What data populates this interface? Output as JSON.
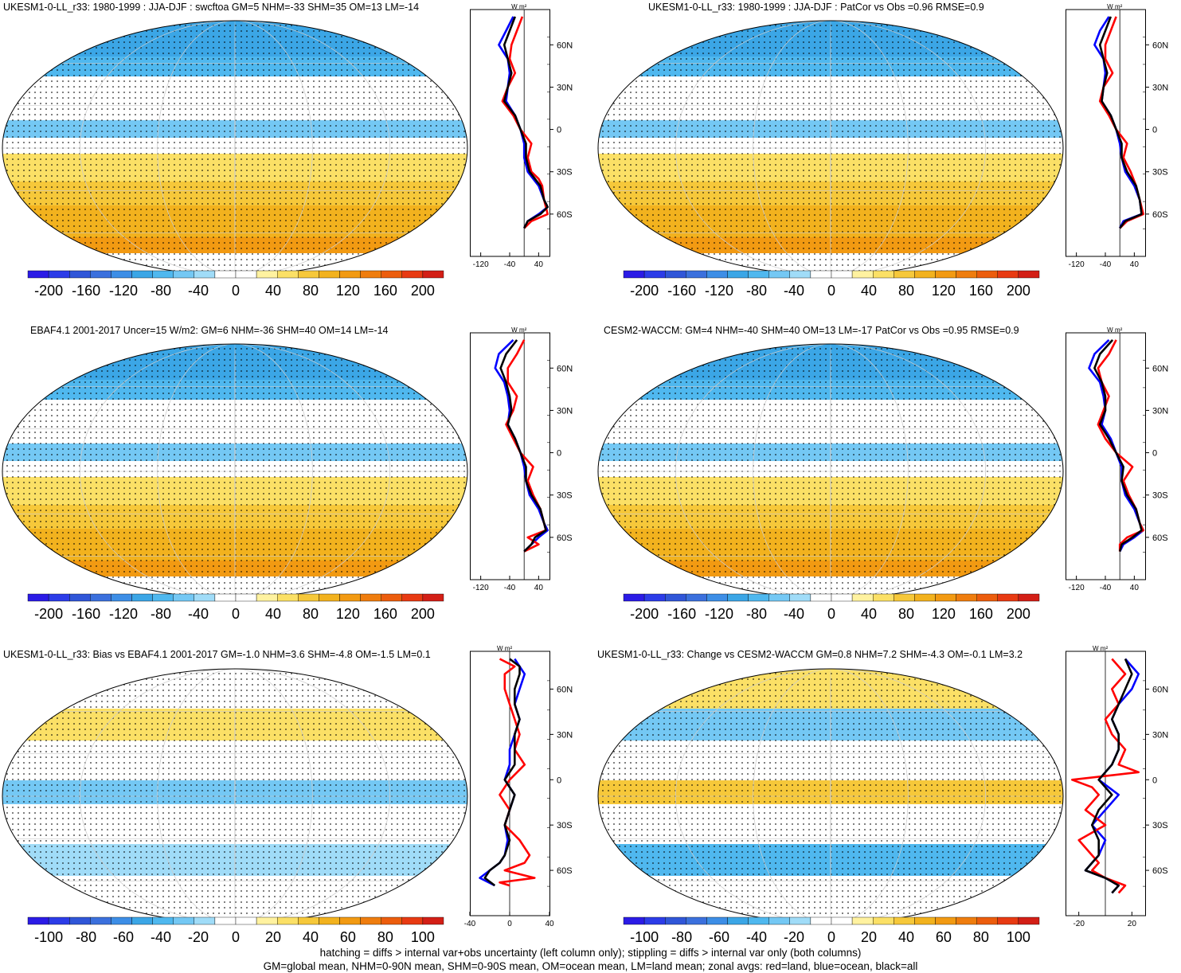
{
  "footer": {
    "line1": "hatching = diffs > internal var+obs uncertainty (left column only); stippling = diffs > internal var only (both columns)",
    "line2": "GM=global mean, NHM=0-90N mean, SHM=0-90S mean, OM=ocean mean, LM=land mean; zonal avgs: red=land, blue=ocean, black=all"
  },
  "unit_label": "W m²",
  "colors": {
    "land": "#ff0000",
    "ocean": "#0000ff",
    "all": "#000000",
    "colorbar": [
      "#2b1be6",
      "#2c3ce8",
      "#3056d8",
      "#3b70dd",
      "#3d8ee6",
      "#3ba6e6",
      "#4fb8ef",
      "#74c8f4",
      "#a0dcf8",
      "#ffffff",
      "#ffffff",
      "#fff2a0",
      "#fbe066",
      "#f6c83a",
      "#f2b21e",
      "#f29a12",
      "#ef7d0e",
      "#ec5d0d",
      "#e83a12",
      "#d31f16"
    ]
  },
  "chart_data": [
    {
      "id": "p1",
      "type": "heatmap",
      "title": "UKESM1-0-LL_r33: 1980-1999 : JJA-DJF : swcftoa GM=5 NHM=-33 SHM=35 OM=13 LM=-14",
      "colorbar_ticks": [
        "-200",
        "-160",
        "-120",
        "-80",
        "-40",
        "0",
        "40",
        "80",
        "120",
        "160",
        "200"
      ],
      "zonal": {
        "type": "line",
        "xlim": [
          -150,
          70
        ],
        "xticks": [
          "-120",
          "-40",
          "40"
        ],
        "yticks": [
          "60N",
          "30N",
          "0",
          "30S",
          "60S"
        ],
        "series": [
          {
            "name": "land",
            "lat": [
              80,
              70,
              60,
              50,
              40,
              30,
              20,
              10,
              0,
              -10,
              -20,
              -30,
              -35,
              -40,
              -50,
              -55,
              -60,
              -65,
              -70
            ],
            "values": [
              -5,
              -20,
              -35,
              -40,
              -25,
              -45,
              -60,
              -30,
              -10,
              20,
              10,
              20,
              40,
              50,
              55,
              60,
              65,
              20,
              0
            ]
          },
          {
            "name": "ocean",
            "lat": [
              80,
              70,
              60,
              50,
              40,
              30,
              20,
              10,
              0,
              -10,
              -20,
              -30,
              -40,
              -50,
              -55,
              -60,
              -65,
              -70
            ],
            "values": [
              -30,
              -50,
              -70,
              -45,
              -40,
              -45,
              -50,
              -25,
              -10,
              0,
              0,
              10,
              40,
              55,
              65,
              40,
              10,
              0
            ]
          },
          {
            "name": "all",
            "lat": [
              80,
              70,
              60,
              50,
              40,
              30,
              20,
              10,
              0,
              -10,
              -20,
              -30,
              -40,
              -50,
              -55,
              -60,
              -65,
              -70
            ],
            "values": [
              -25,
              -40,
              -55,
              -45,
              -35,
              -45,
              -55,
              -25,
              -10,
              5,
              5,
              15,
              45,
              55,
              65,
              45,
              10,
              0
            ]
          }
        ]
      }
    },
    {
      "id": "p2",
      "type": "heatmap",
      "title": "UKESM1-0-LL_r33: 1980-1999 : JJA-DJF : PatCor vs Obs =0.96 RMSE=0.9",
      "colorbar_ticks": [
        "-200",
        "-160",
        "-120",
        "-80",
        "-40",
        "0",
        "40",
        "80",
        "120",
        "160",
        "200"
      ],
      "zonal": {
        "type": "line",
        "xlim": [
          -150,
          70
        ],
        "xticks": [
          "-120",
          "-40",
          "40"
        ],
        "yticks": [
          "60N",
          "30N",
          "0",
          "30S",
          "60S"
        ],
        "series": [
          {
            "name": "land",
            "lat": [
              80,
              70,
              60,
              50,
              40,
              30,
              20,
              10,
              0,
              -10,
              -20,
              -30,
              -40,
              -50,
              -60,
              -65,
              -70
            ],
            "values": [
              -10,
              -25,
              -40,
              -40,
              -20,
              -45,
              -55,
              -30,
              -10,
              20,
              10,
              30,
              45,
              55,
              65,
              20,
              0
            ]
          },
          {
            "name": "ocean",
            "lat": [
              80,
              70,
              60,
              50,
              40,
              30,
              20,
              10,
              0,
              -10,
              -20,
              -30,
              -40,
              -50,
              -60,
              -65,
              -70
            ],
            "values": [
              -30,
              -55,
              -70,
              -45,
              -40,
              -45,
              -50,
              -25,
              -10,
              0,
              5,
              15,
              40,
              55,
              60,
              10,
              0
            ]
          },
          {
            "name": "all",
            "lat": [
              80,
              70,
              60,
              50,
              40,
              30,
              20,
              10,
              0,
              -10,
              -20,
              -30,
              -40,
              -50,
              -60,
              -65,
              -70
            ],
            "values": [
              -25,
              -40,
              -55,
              -45,
              -35,
              -45,
              -50,
              -25,
              -10,
              5,
              5,
              20,
              45,
              55,
              60,
              15,
              0
            ]
          }
        ]
      }
    },
    {
      "id": "p3",
      "type": "heatmap",
      "title": "EBAF4.1 2001-2017 Uncer=15 W/m2: GM=6 NHM=-36 SHM=40 OM=14 LM=-14",
      "colorbar_ticks": [
        "-200",
        "-160",
        "-120",
        "-80",
        "-40",
        "0",
        "40",
        "80",
        "120",
        "160",
        "200"
      ],
      "zonal": {
        "type": "line",
        "xlim": [
          -150,
          70
        ],
        "xticks": [
          "-120",
          "-40",
          "40"
        ],
        "yticks": [
          "60N",
          "30N",
          "0",
          "30S",
          "60S"
        ],
        "series": [
          {
            "name": "land",
            "lat": [
              80,
              70,
              60,
              50,
              40,
              30,
              20,
              10,
              0,
              -10,
              -20,
              -30,
              -40,
              -50,
              -55,
              -60,
              -65,
              -70
            ],
            "values": [
              0,
              -20,
              -45,
              -45,
              -20,
              -30,
              -50,
              -30,
              -10,
              25,
              10,
              25,
              45,
              55,
              60,
              10,
              40,
              0
            ]
          },
          {
            "name": "ocean",
            "lat": [
              80,
              70,
              60,
              50,
              40,
              30,
              20,
              10,
              0,
              -10,
              -20,
              -30,
              -40,
              -50,
              -55,
              -60,
              -65,
              -70
            ],
            "values": [
              -30,
              -70,
              -80,
              -55,
              -45,
              -40,
              -45,
              -25,
              -10,
              0,
              5,
              15,
              40,
              55,
              65,
              40,
              20,
              0
            ]
          },
          {
            "name": "all",
            "lat": [
              80,
              70,
              60,
              50,
              40,
              30,
              20,
              10,
              0,
              -10,
              -20,
              -30,
              -40,
              -50,
              -55,
              -60,
              -65,
              -70
            ],
            "values": [
              -20,
              -50,
              -65,
              -50,
              -40,
              -35,
              -45,
              -25,
              -10,
              5,
              5,
              20,
              45,
              55,
              60,
              30,
              20,
              0
            ]
          }
        ]
      }
    },
    {
      "id": "p4",
      "type": "heatmap",
      "title": "CESM2-WACCM: GM=4 NHM=-40 SHM=40 OM=13 LM=-17 PatCor vs Obs =0.95 RMSE=0.9",
      "colorbar_ticks": [
        "-200",
        "-160",
        "-120",
        "-80",
        "-40",
        "0",
        "40",
        "80",
        "120",
        "160",
        "200"
      ],
      "zonal": {
        "type": "line",
        "xlim": [
          -150,
          70
        ],
        "xticks": [
          "-120",
          "-40",
          "40"
        ],
        "yticks": [
          "60N",
          "30N",
          "0",
          "30S",
          "60S"
        ],
        "series": [
          {
            "name": "land",
            "lat": [
              80,
              70,
              60,
              50,
              40,
              30,
              20,
              10,
              0,
              -10,
              -20,
              -30,
              -40,
              -50,
              -55,
              -60,
              -65,
              -70
            ],
            "values": [
              -10,
              -30,
              -60,
              -50,
              -30,
              -45,
              -60,
              -40,
              -10,
              35,
              10,
              25,
              45,
              55,
              65,
              20,
              0,
              0
            ]
          },
          {
            "name": "ocean",
            "lat": [
              80,
              70,
              60,
              50,
              40,
              30,
              20,
              10,
              0,
              -10,
              -20,
              -30,
              -40,
              -50,
              -55,
              -60,
              -65,
              -70
            ],
            "values": [
              -30,
              -70,
              -85,
              -55,
              -45,
              -40,
              -50,
              -25,
              -10,
              5,
              5,
              15,
              40,
              55,
              65,
              40,
              10,
              0
            ]
          },
          {
            "name": "all",
            "lat": [
              80,
              70,
              60,
              50,
              40,
              30,
              20,
              10,
              0,
              -10,
              -20,
              -30,
              -40,
              -50,
              -55,
              -60,
              -65,
              -70
            ],
            "values": [
              -20,
              -55,
              -70,
              -50,
              -40,
              -40,
              -55,
              -30,
              -10,
              10,
              5,
              20,
              45,
              55,
              60,
              35,
              5,
              0
            ]
          }
        ]
      }
    },
    {
      "id": "p5",
      "type": "heatmap",
      "title": "UKESM1-0-LL_r33: Bias vs EBAF4.1 2001-2017 GM=-1.0 NHM=3.6 SHM=-4.8 OM=-1.5 LM=0.1",
      "colorbar_ticks": [
        "-100",
        "-80",
        "-60",
        "-40",
        "-20",
        "0",
        "20",
        "40",
        "60",
        "80",
        "100"
      ],
      "zonal": {
        "type": "line",
        "xlim": [
          -40,
          40
        ],
        "xticks": [
          "-40",
          "0",
          "40"
        ],
        "yticks": [
          "60N",
          "30N",
          "0",
          "30S",
          "60S"
        ],
        "series": [
          {
            "name": "land",
            "lat": [
              80,
              75,
              70,
              60,
              50,
              40,
              30,
              20,
              10,
              0,
              -10,
              -20,
              -30,
              -40,
              -50,
              -55,
              -60,
              -65,
              -68,
              -70
            ],
            "values": [
              -10,
              5,
              -5,
              -5,
              0,
              5,
              10,
              5,
              15,
              0,
              -10,
              0,
              -5,
              10,
              20,
              15,
              -5,
              25,
              -10,
              0
            ]
          },
          {
            "name": "ocean",
            "lat": [
              80,
              75,
              70,
              60,
              50,
              40,
              30,
              20,
              10,
              0,
              -10,
              -20,
              -30,
              -40,
              -50,
              -55,
              -60,
              -65,
              -70
            ],
            "values": [
              5,
              10,
              15,
              10,
              5,
              10,
              5,
              0,
              0,
              -5,
              5,
              0,
              -5,
              -2,
              -5,
              -10,
              -20,
              -30,
              -15
            ]
          },
          {
            "name": "all",
            "lat": [
              80,
              75,
              70,
              60,
              50,
              40,
              30,
              20,
              10,
              0,
              -10,
              -20,
              -30,
              -40,
              -50,
              -55,
              -60,
              -65,
              -70
            ],
            "values": [
              0,
              10,
              10,
              5,
              5,
              10,
              5,
              5,
              5,
              -5,
              5,
              0,
              -5,
              0,
              -5,
              -10,
              -20,
              -25,
              -15
            ]
          }
        ]
      }
    },
    {
      "id": "p6",
      "type": "heatmap",
      "title": "UKESM1-0-LL_r33: Change vs CESM2-WACCM GM=0.8 NHM=7.2 SHM=-4.3 OM=-0.1 LM=3.2",
      "colorbar_ticks": [
        "-100",
        "-80",
        "-60",
        "-40",
        "-20",
        "0",
        "20",
        "40",
        "60",
        "80",
        "100"
      ],
      "zonal": {
        "type": "line",
        "xlim": [
          -30,
          30
        ],
        "xticks": [
          "-20",
          "20"
        ],
        "yticks": [
          "60N",
          "30N",
          "0",
          "30S",
          "60S"
        ],
        "series": [
          {
            "name": "land",
            "lat": [
              80,
              70,
              60,
              50,
              40,
              30,
              20,
              10,
              5,
              0,
              -5,
              -10,
              -20,
              -30,
              -40,
              -50,
              -55,
              -60,
              -65,
              -70,
              -75
            ],
            "values": [
              5,
              15,
              5,
              10,
              0,
              5,
              15,
              10,
              25,
              -25,
              -10,
              -5,
              -15,
              0,
              -20,
              -10,
              -5,
              -10,
              0,
              15,
              10
            ]
          },
          {
            "name": "ocean",
            "lat": [
              80,
              70,
              60,
              50,
              40,
              30,
              20,
              10,
              0,
              -10,
              -20,
              -30,
              -40,
              -50,
              -55,
              -60,
              -65,
              -70,
              -75
            ],
            "values": [
              15,
              25,
              20,
              10,
              5,
              10,
              10,
              5,
              -5,
              10,
              0,
              -10,
              0,
              -5,
              -10,
              -15,
              0,
              10,
              5
            ]
          },
          {
            "name": "all",
            "lat": [
              80,
              70,
              60,
              50,
              40,
              30,
              20,
              10,
              0,
              -10,
              -20,
              -30,
              -40,
              -50,
              -55,
              -60,
              -65,
              -70,
              -75
            ],
            "values": [
              15,
              20,
              15,
              10,
              5,
              10,
              10,
              5,
              -5,
              5,
              -5,
              -10,
              -5,
              -5,
              -10,
              -15,
              0,
              10,
              5
            ]
          }
        ]
      }
    }
  ]
}
